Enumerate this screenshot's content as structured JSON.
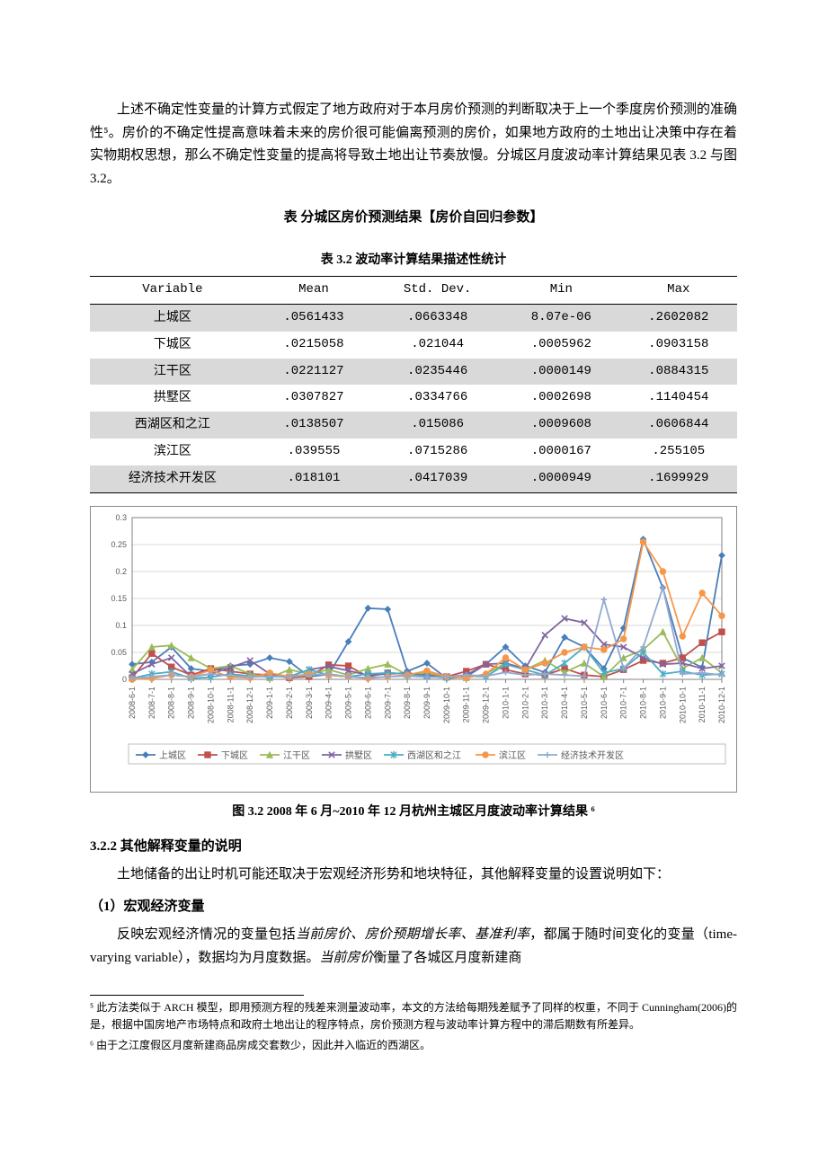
{
  "paragraphs": {
    "p1": "上述不确定性变量的计算方式假定了地方政府对于本月房价预测的判断取决于上一个季度房价预测的准确性⁵。房价的不确定性提高意味着未来的房价很可能偏离预测的房价，如果地方政府的土地出让决策中存在着实物期权思想，那么不确定性变量的提高将导致土地出让节奏放慢。分城区月度波动率计算结果见表 3.2  与图 3.2。",
    "h1": "表  分城区房价预测结果【房价自回归参数】",
    "table_caption": "表 3.2  波动率计算结果描述性统计",
    "fig_caption": "图 3.2 2008 年 6 月~2010 年 12 月杭州主城区月度波动率计算结果 ⁶",
    "sec_label": "3.2.2 其他解释变量的说明",
    "p2": "土地储备的出让时机可能还取决于宏观经济形势和地块特征，其他解释变量的设置说明如下：",
    "sub1": "（1）宏观经济变量",
    "p3a": "反映宏观经济情况的变量包括",
    "p3b": "当前房价、房价预期增长率、基准利率",
    "p3c": "，都属于随时间变化的变量（time-varying variable），数据均为月度数据。",
    "p3d": "当前房价",
    "p3e": "衡量了各城区月度新建商"
  },
  "table": {
    "headers": [
      "Variable",
      "Mean",
      "Std. Dev.",
      "Min",
      "Max"
    ],
    "rows": [
      [
        "上城区",
        ".0561433",
        ".0663348",
        "8.07e-06",
        ".2602082"
      ],
      [
        "下城区",
        ".0215058",
        ".021044",
        ".0005962",
        ".0903158"
      ],
      [
        "江干区",
        ".0221127",
        ".0235446",
        ".0000149",
        ".0884315"
      ],
      [
        "拱墅区",
        ".0307827",
        ".0334766",
        ".0002698",
        ".1140454"
      ],
      [
        "西湖区和之江",
        ".0138507",
        ".015086",
        ".0009608",
        ".0606844"
      ],
      [
        "滨江区",
        ".039555",
        ".0715286",
        ".0000167",
        ".255105"
      ],
      [
        "经济技术开发区",
        ".018101",
        ".0417039",
        ".0000949",
        ".1699929"
      ]
    ]
  },
  "chart": {
    "type": "line",
    "background_color": "#ffffff",
    "plot_bg": "#ffffff",
    "grid_color": "#d9d9d9",
    "axis_color": "#808080",
    "tick_fontsize": 9,
    "legend_fontsize": 10,
    "ylim": [
      0,
      0.3
    ],
    "ytick_step": 0.05,
    "yticks": [
      "0",
      "0.05",
      "0.1",
      "0.15",
      "0.2",
      "0.25",
      "0.3"
    ],
    "x_labels": [
      "2008-6-1",
      "2008-7-1",
      "2008-8-1",
      "2008-9-1",
      "2008-10-1",
      "2008-11-1",
      "2008-12-1",
      "2009-1-1",
      "2009-2-1",
      "2009-3-1",
      "2009-4-1",
      "2009-5-1",
      "2009-6-1",
      "2009-7-1",
      "2009-8-1",
      "2009-9-1",
      "2009-10-1",
      "2009-11-1",
      "2009-12-1",
      "2010-1-1",
      "2010-2-1",
      "2010-3-1",
      "2010-4-1",
      "2010-5-1",
      "2010-6-1",
      "2010-7-1",
      "2010-8-1",
      "2010-9-1",
      "2010-10-1",
      "2010-11-1",
      "2010-12-1"
    ],
    "series": [
      {
        "name": "上城区",
        "color": "#4a7ebb",
        "marker": "diamond",
        "values": [
          0.028,
          0.032,
          0.06,
          0.02,
          0.015,
          0.025,
          0.028,
          0.04,
          0.033,
          0.005,
          0.009,
          0.07,
          0.132,
          0.13,
          0.015,
          0.03,
          0.002,
          0.005,
          0.028,
          0.06,
          0.025,
          0.013,
          0.078,
          0.06,
          0.02,
          0.095,
          0.26,
          0.17,
          0.04,
          0.022,
          0.23
        ]
      },
      {
        "name": "下城区",
        "color": "#c0504d",
        "marker": "square",
        "values": [
          0.003,
          0.048,
          0.023,
          0.008,
          0.02,
          0.015,
          0.01,
          0.008,
          0.003,
          0.005,
          0.027,
          0.025,
          0.005,
          0.012,
          0.01,
          0.008,
          0.005,
          0.015,
          0.028,
          0.018,
          0.01,
          0.008,
          0.02,
          0.008,
          0.005,
          0.018,
          0.035,
          0.03,
          0.04,
          0.068,
          0.088
        ]
      },
      {
        "name": "江干区",
        "color": "#9bbb59",
        "marker": "triangle",
        "values": [
          0.018,
          0.06,
          0.063,
          0.04,
          0.02,
          0.025,
          0.01,
          0.003,
          0.018,
          0.01,
          0.018,
          0.008,
          0.02,
          0.028,
          0.008,
          0.012,
          0.005,
          0.003,
          0.01,
          0.03,
          0.018,
          0.035,
          0.013,
          0.03,
          0.005,
          0.04,
          0.055,
          0.088,
          0.02,
          0.04,
          0.012
        ]
      },
      {
        "name": "拱墅区",
        "color": "#8064a2",
        "marker": "x",
        "values": [
          0.01,
          0.028,
          0.04,
          0.005,
          0.01,
          0.022,
          0.035,
          0.01,
          0.005,
          0.018,
          0.024,
          0.016,
          0.008,
          0.01,
          0.012,
          0.006,
          0.005,
          0.008,
          0.028,
          0.03,
          0.02,
          0.082,
          0.113,
          0.105,
          0.065,
          0.06,
          0.04,
          0.028,
          0.03,
          0.02,
          0.025
        ]
      },
      {
        "name": "西湖区和之江",
        "color": "#4bacc6",
        "marker": "star",
        "values": [
          0.002,
          0.01,
          0.014,
          0.002,
          0.004,
          0.01,
          0.006,
          0.005,
          0.005,
          0.018,
          0.008,
          0.005,
          0.01,
          0.012,
          0.01,
          0.005,
          0.003,
          0.006,
          0.005,
          0.028,
          0.018,
          0.008,
          0.03,
          0.06,
          0.012,
          0.02,
          0.05,
          0.01,
          0.015,
          0.008,
          0.01
        ]
      },
      {
        "name": "滨江区",
        "color": "#f79646",
        "marker": "circle",
        "values": [
          0.0,
          0.002,
          0.008,
          0.005,
          0.017,
          0.004,
          0.003,
          0.012,
          0.005,
          0.01,
          0.008,
          0.005,
          0.002,
          0.005,
          0.008,
          0.016,
          0.005,
          0.003,
          0.01,
          0.04,
          0.018,
          0.03,
          0.05,
          0.06,
          0.055,
          0.075,
          0.255,
          0.2,
          0.08,
          0.16,
          0.118
        ]
      },
      {
        "name": "经济技术开发区",
        "color": "#93a9d0",
        "marker": "plus",
        "values": [
          0.002,
          0.005,
          0.008,
          0.005,
          0.01,
          0.007,
          0.004,
          0.006,
          0.005,
          0.008,
          0.01,
          0.005,
          0.003,
          0.005,
          0.006,
          0.004,
          0.005,
          0.008,
          0.006,
          0.013,
          0.008,
          0.01,
          0.008,
          0.006,
          0.148,
          0.02,
          0.06,
          0.17,
          0.01,
          0.012,
          0.008
        ]
      }
    ],
    "legend_labels": [
      "上城区",
      "下城区",
      "江干区",
      "拱墅区",
      "西湖区和之江",
      "滨江区",
      "经济技术开发区"
    ]
  },
  "footnotes": {
    "fn5": "⁵ 此方法类似于 ARCH 模型，即用预测方程的残差来测量波动率，本文的方法给每期残差赋予了同样的权重，不同于 Cunningham(2006)的是，根据中国房地产市场特点和政府土地出让的程序特点，房价预测方程与波动率计算方程中的滞后期数有所差异。",
    "fn6": "⁶ 由于之江度假区月度新建商品房成交套数少，因此并入临近的西湖区。"
  }
}
